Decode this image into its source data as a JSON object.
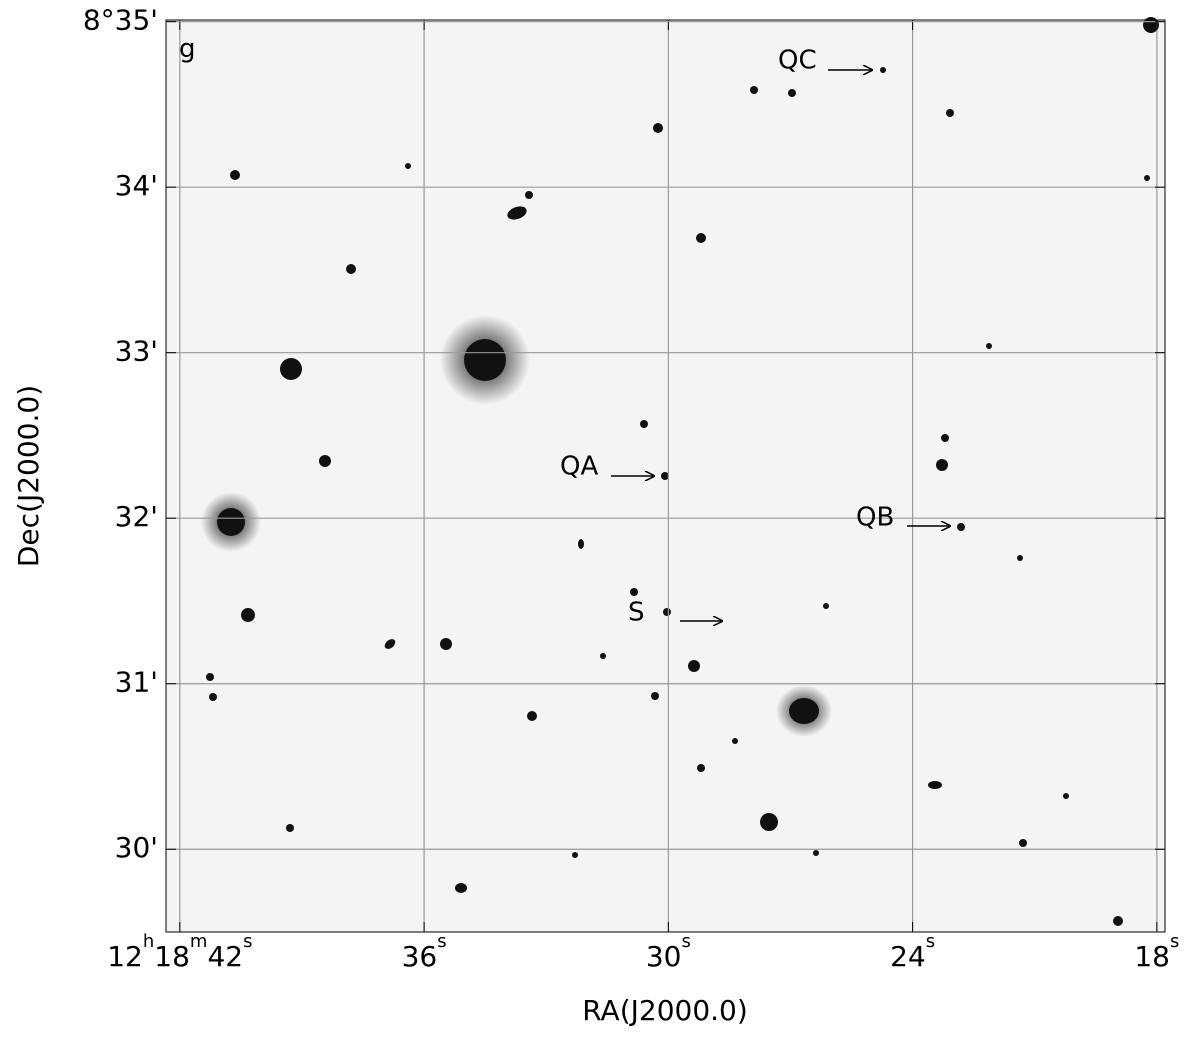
{
  "chart_data": {
    "type": "sky-image",
    "xlabel": "RA(J2000.0)",
    "ylabel": "Dec(J2000.0)",
    "band_label": "g",
    "xlim": [
      42.34,
      17.8
    ],
    "xticks": [
      {
        "value": 42,
        "label": "12h18m42s"
      },
      {
        "value": 36,
        "label": "36s"
      },
      {
        "value": 30,
        "label": "30s"
      },
      {
        "value": 24,
        "label": "24s"
      },
      {
        "value": 18,
        "label": "18s"
      }
    ],
    "ylim": [
      29.5,
      35.01
    ],
    "yticks": [
      {
        "value": 35,
        "label": "8°35'"
      },
      {
        "value": 34,
        "label": "34'"
      },
      {
        "value": 33,
        "label": "33'"
      },
      {
        "value": 32,
        "label": "32'"
      },
      {
        "value": 31,
        "label": "31'"
      },
      {
        "value": 30,
        "label": "30'"
      }
    ],
    "grid": true,
    "annotations": [
      "QC",
      "QA",
      "QB",
      "S"
    ]
  }
}
